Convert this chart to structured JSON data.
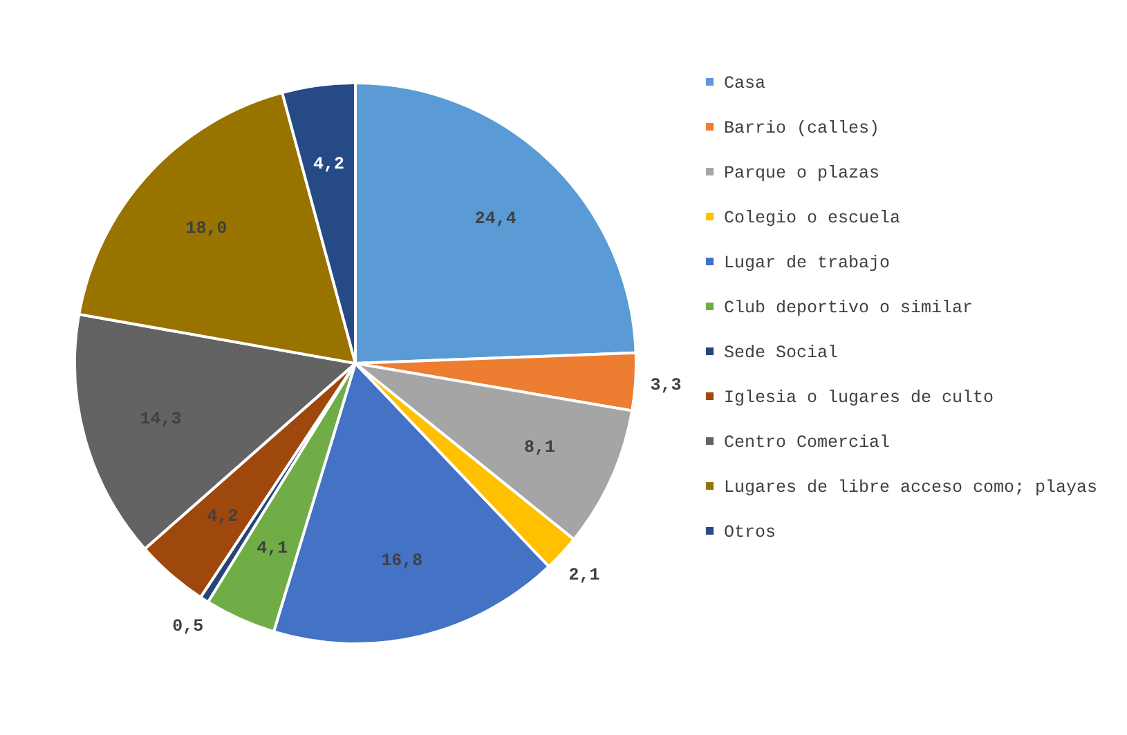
{
  "chart_data": {
    "type": "pie",
    "categories": [
      "Casa",
      "Barrio (calles)",
      "Parque o plazas",
      "Colegio o escuela",
      "Lugar de trabajo",
      "Club deportivo o similar",
      "Sede Social",
      "Iglesia o lugares de culto",
      "Centro Comercial",
      "Lugares de libre acceso como; playas",
      "Otros"
    ],
    "values": [
      24.4,
      3.3,
      8.1,
      2.1,
      16.8,
      4.1,
      0.5,
      4.2,
      14.3,
      18.0,
      4.2
    ],
    "value_labels": [
      "24,4",
      "3,3",
      "8,1",
      "2,1",
      "16,8",
      "4,1",
      "0,5",
      "4,2",
      "14,3",
      "18,0",
      "4,2"
    ],
    "colors": [
      "#5b9bd5",
      "#ed7d31",
      "#a5a5a5",
      "#ffc000",
      "#4472c4",
      "#70ad47",
      "#264478",
      "#9e480e",
      "#636363",
      "#997300",
      "#264a85"
    ],
    "legend": "right"
  }
}
